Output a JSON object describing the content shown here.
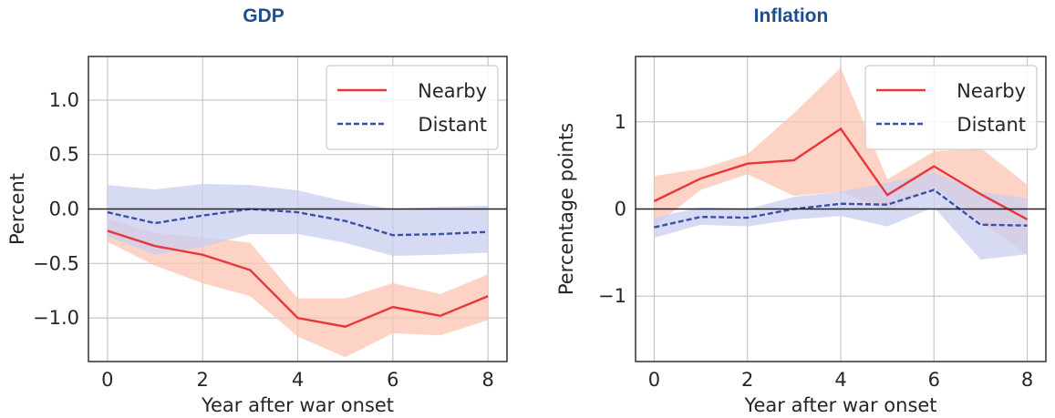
{
  "chart_data": [
    {
      "type": "line",
      "title": "GDP",
      "title_color": "#1f4e8c",
      "xlabel": "Year after war onset",
      "ylabel": "Percent",
      "xlim": [
        -0.4,
        8.4
      ],
      "ylim": [
        -1.4,
        1.4
      ],
      "xticks": [
        0,
        2,
        4,
        6,
        8
      ],
      "yticks": [
        -1.0,
        -0.5,
        0.0,
        0.5,
        1.0
      ],
      "ytick_labels": [
        "−1.0",
        "−0.5",
        "0.0",
        "0.5",
        "1.0"
      ],
      "grid": true,
      "zero_line": true,
      "legend_position": "top-right",
      "x": [
        0,
        1,
        2,
        3,
        4,
        5,
        6,
        7,
        8
      ],
      "series": [
        {
          "name": "Nearby",
          "style": "solid",
          "color": "#e8363b",
          "band_color": "#fbc4b1",
          "values": [
            -0.2,
            -0.34,
            -0.42,
            -0.56,
            -1.0,
            -1.08,
            -0.9,
            -0.98,
            -0.8
          ],
          "lower": [
            -0.3,
            -0.52,
            -0.68,
            -0.8,
            -1.17,
            -1.36,
            -1.14,
            -1.16,
            -1.02
          ],
          "upper": [
            -0.09,
            -0.22,
            -0.26,
            -0.31,
            -0.82,
            -0.82,
            -0.68,
            -0.78,
            -0.6
          ]
        },
        {
          "name": "Distant",
          "style": "dashed",
          "color": "#3b4fa8",
          "band_color": "#c9cdef",
          "values": [
            -0.03,
            -0.13,
            -0.06,
            0.0,
            -0.03,
            -0.11,
            -0.24,
            -0.23,
            -0.21
          ],
          "lower": [
            -0.25,
            -0.42,
            -0.35,
            -0.23,
            -0.23,
            -0.31,
            -0.43,
            -0.42,
            -0.4
          ],
          "upper": [
            0.22,
            0.18,
            0.23,
            0.22,
            0.17,
            0.07,
            0.0,
            0.02,
            0.03
          ]
        }
      ]
    },
    {
      "type": "line",
      "title": "Inflation",
      "title_color": "#1f4e8c",
      "xlabel": "Year after war onset",
      "ylabel": "Percentage points",
      "xlim": [
        -0.4,
        8.4
      ],
      "ylim": [
        -1.75,
        1.75
      ],
      "xticks": [
        0,
        2,
        4,
        6,
        8
      ],
      "yticks": [
        -1,
        0,
        1
      ],
      "ytick_labels": [
        "−1",
        "0",
        "1"
      ],
      "grid": true,
      "zero_line": true,
      "legend_position": "top-right",
      "x": [
        0,
        1,
        2,
        3,
        4,
        5,
        6,
        7,
        8
      ],
      "series": [
        {
          "name": "Nearby",
          "style": "solid",
          "color": "#e8363b",
          "band_color": "#fbc4b1",
          "values": [
            0.09,
            0.35,
            0.52,
            0.56,
            0.92,
            0.16,
            0.49,
            0.17,
            -0.12
          ],
          "lower": [
            -0.2,
            0.22,
            0.4,
            0.15,
            0.2,
            -0.02,
            0.26,
            -0.15,
            -0.52
          ],
          "upper": [
            0.38,
            0.46,
            0.63,
            1.1,
            1.62,
            0.34,
            0.66,
            0.7,
            0.28
          ]
        },
        {
          "name": "Distant",
          "style": "dashed",
          "color": "#3b4fa8",
          "band_color": "#c9cdef",
          "values": [
            -0.21,
            -0.09,
            -0.1,
            0.0,
            0.06,
            0.05,
            0.22,
            -0.18,
            -0.19
          ],
          "lower": [
            -0.33,
            -0.18,
            -0.2,
            -0.12,
            -0.08,
            -0.2,
            0.02,
            -0.58,
            -0.52
          ],
          "upper": [
            -0.1,
            0.02,
            0.0,
            0.14,
            0.2,
            0.3,
            0.42,
            0.2,
            0.12
          ]
        }
      ]
    }
  ]
}
